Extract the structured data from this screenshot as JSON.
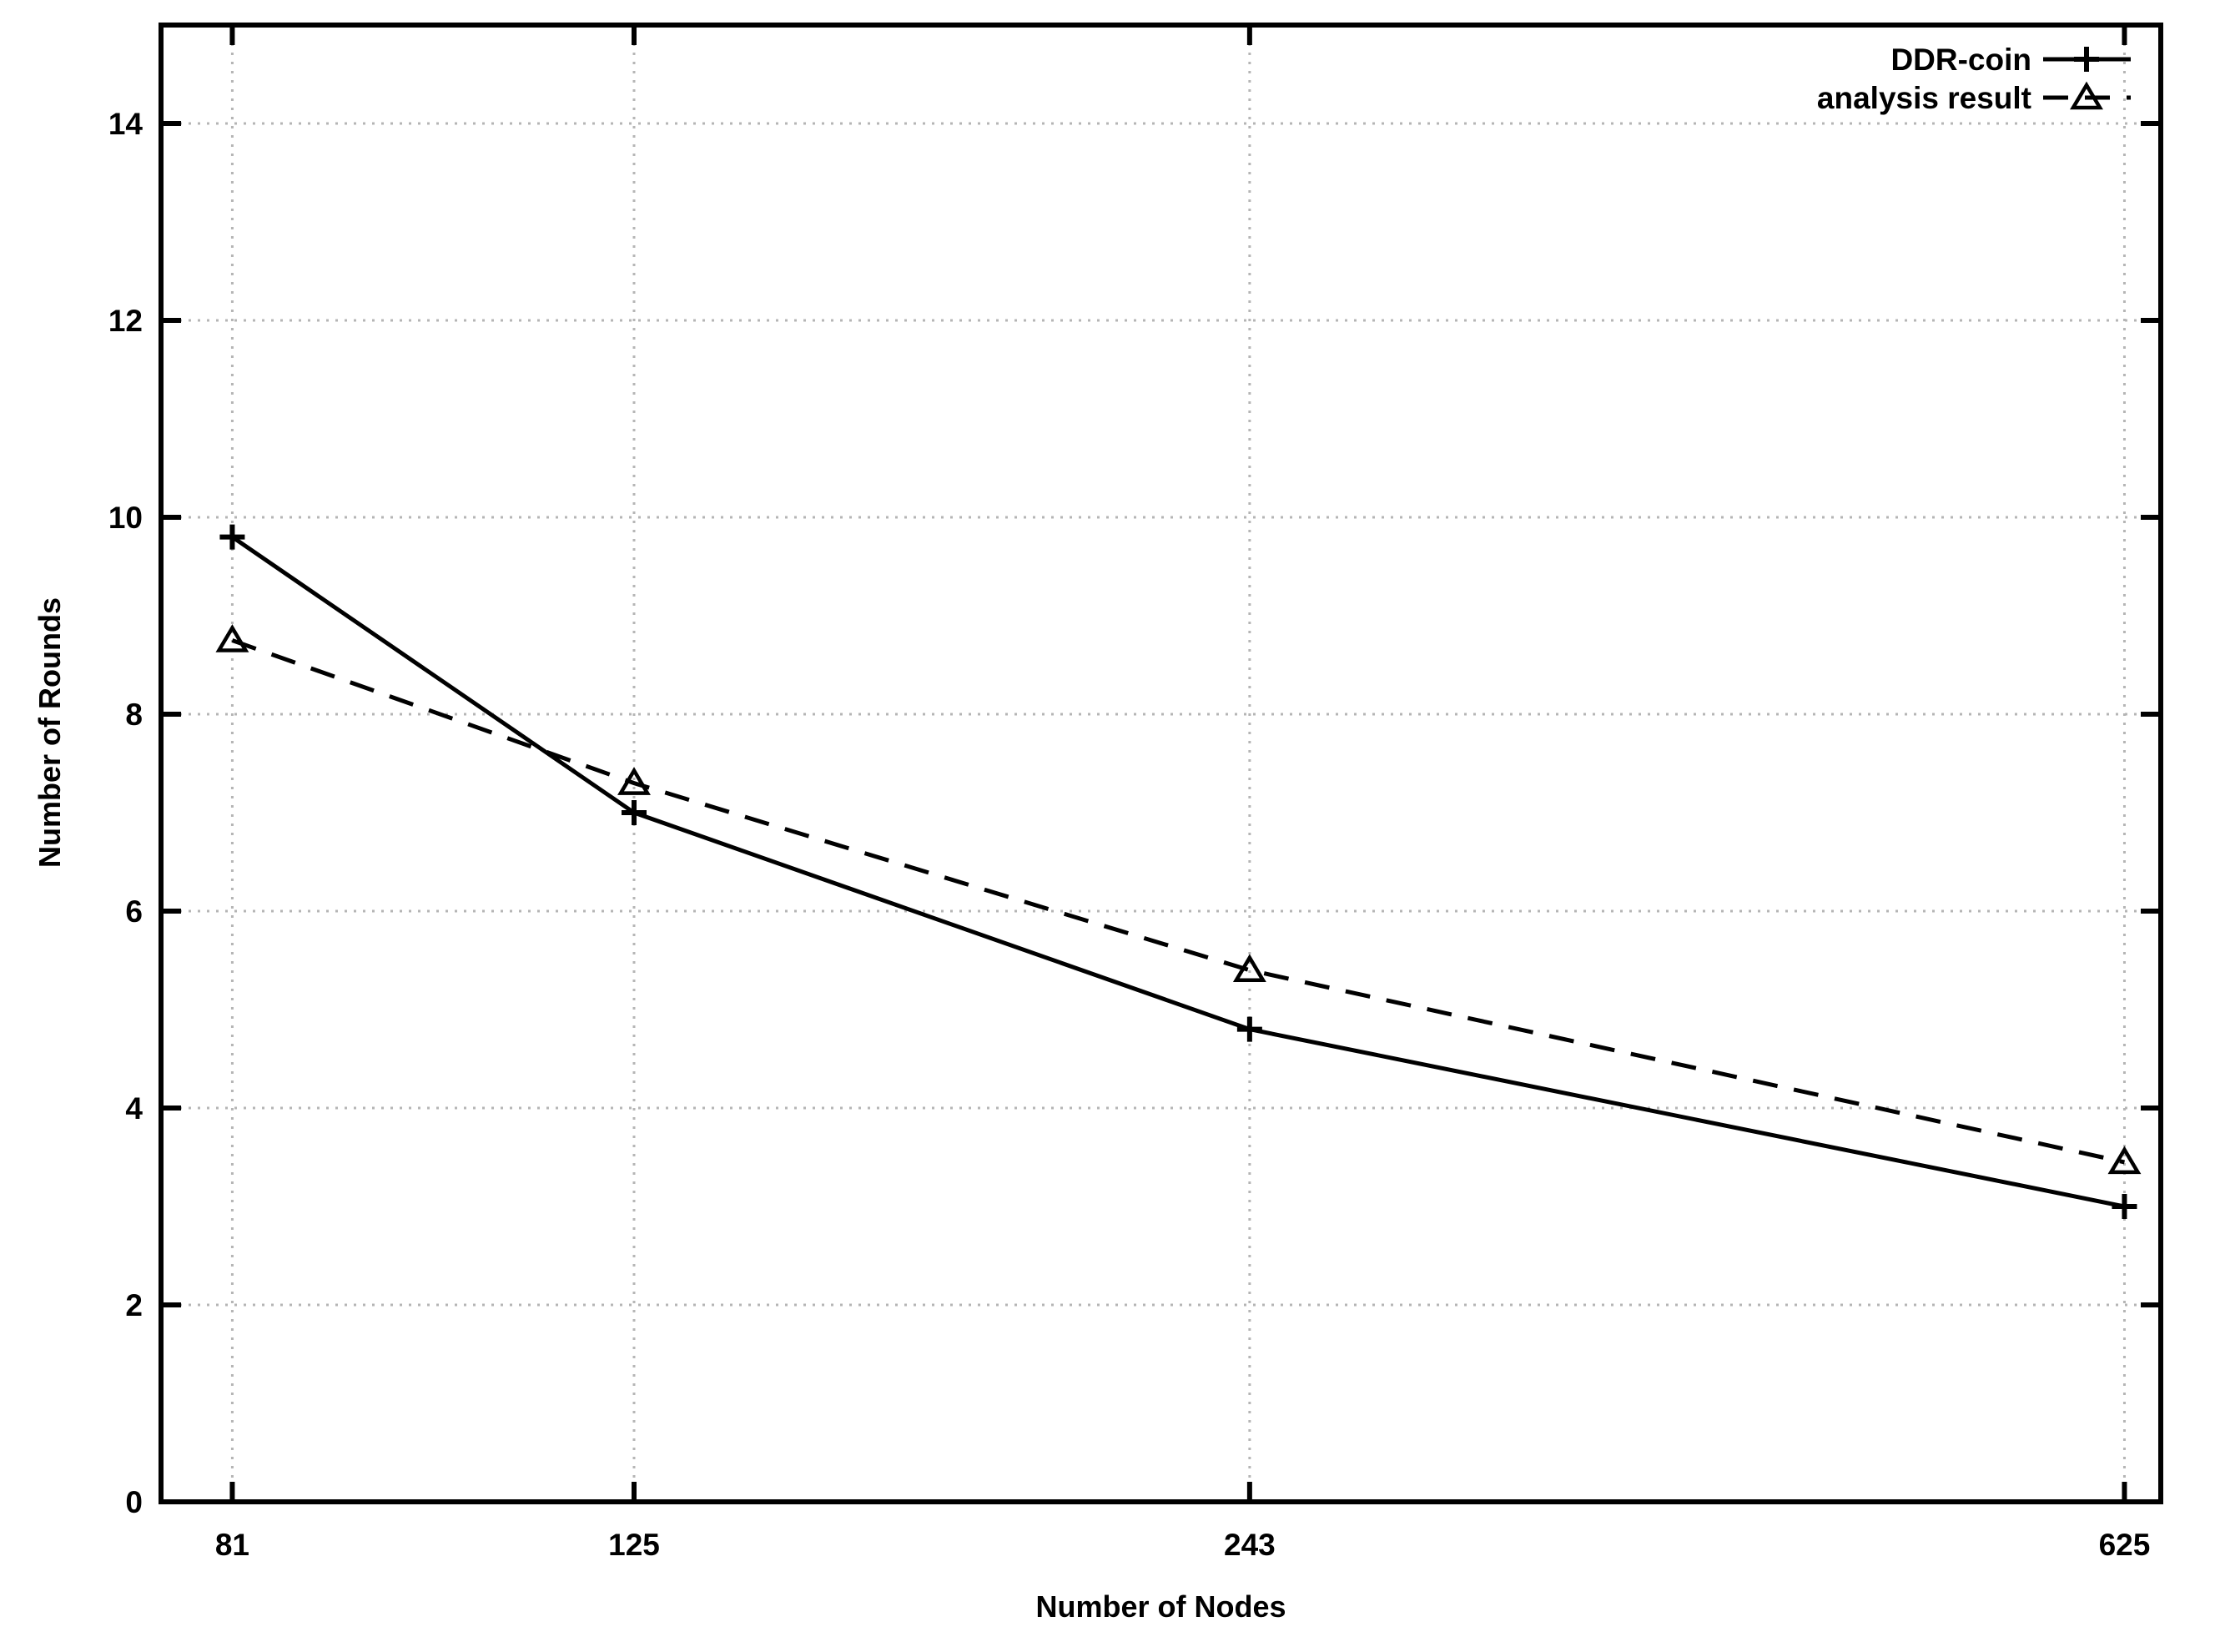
{
  "figure": {
    "background": "#ffffff"
  },
  "chart_data": {
    "type": "line",
    "title": "",
    "xlabel": "Number of Nodes",
    "ylabel": "Number of Rounds",
    "xscale": "log",
    "xlim": [
      75,
      650
    ],
    "ylim": [
      0,
      15
    ],
    "xticks": [
      81,
      125,
      243,
      625
    ],
    "yticks": [
      0,
      2,
      4,
      6,
      8,
      10,
      12,
      14
    ],
    "grid": true,
    "legend_position": "top-right-inside",
    "x": [
      81,
      125,
      243,
      625
    ],
    "series": [
      {
        "name": "DDR-coin",
        "line_style": "solid",
        "marker": "plus",
        "values": [
          9.8,
          7.0,
          4.8,
          3.0
        ]
      },
      {
        "name": "analysis result",
        "line_style": "dashed",
        "marker": "triangle-open",
        "values": [
          8.75,
          7.3,
          5.4,
          3.45
        ]
      }
    ],
    "colors": {
      "series": "#000000",
      "grid": "#b5b5b5",
      "text": "#000000",
      "background": "#ffffff"
    }
  }
}
